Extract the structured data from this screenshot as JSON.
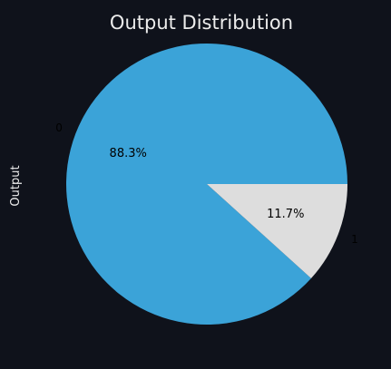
{
  "chart_data": {
    "type": "pie",
    "title": "Output Distribution",
    "ylabel": "Output",
    "categories": [
      "0",
      "1"
    ],
    "values": [
      88.3,
      11.7
    ],
    "percent_labels": [
      "88.3%",
      "11.7%"
    ],
    "colors": [
      "#3ba3d8",
      "#dddddd"
    ],
    "background": "#0f121b",
    "start_angle_deg": 0,
    "direction": "counterclockwise"
  }
}
